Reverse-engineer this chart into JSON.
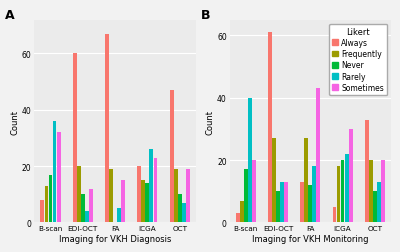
{
  "categories": [
    "B-scan",
    "EDI-OCT",
    "FA",
    "ICGA",
    "OCT"
  ],
  "likert_labels": [
    "Always",
    "Frequently",
    "Never",
    "Rarely",
    "Sometimes"
  ],
  "colors": [
    "#F8766D",
    "#9B9B00",
    "#00BA38",
    "#00BFC4",
    "#F564E3"
  ],
  "panel_A_title": "Imaging for VKH Diagnosis",
  "panel_B_title": "Imaging for VKH Monitoring",
  "panel_A_data": {
    "Always": [
      8,
      60,
      67,
      20,
      47
    ],
    "Frequently": [
      13,
      20,
      19,
      15,
      19
    ],
    "Never": [
      17,
      10,
      0,
      14,
      10
    ],
    "Rarely": [
      36,
      4,
      5,
      26,
      7
    ],
    "Sometimes": [
      32,
      12,
      15,
      23,
      19
    ]
  },
  "panel_B_data": {
    "Always": [
      3,
      61,
      13,
      5,
      33
    ],
    "Frequently": [
      7,
      27,
      27,
      18,
      20
    ],
    "Never": [
      17,
      10,
      12,
      20,
      10
    ],
    "Rarely": [
      40,
      13,
      18,
      22,
      13
    ],
    "Sometimes": [
      20,
      13,
      43,
      30,
      20
    ]
  },
  "ylabel": "Count",
  "ylim_A": [
    0,
    72
  ],
  "ylim_B": [
    0,
    65
  ],
  "yticks_A": [
    0,
    20,
    40,
    60
  ],
  "yticks_B": [
    0,
    20,
    40,
    60
  ],
  "legend_title": "Likert",
  "plot_bg_color": "#EBEBEB",
  "fig_bg_color": "#F2F2F2",
  "grid_color": "white"
}
